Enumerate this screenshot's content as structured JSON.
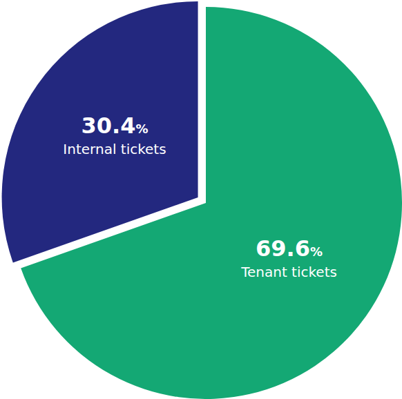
{
  "chart_data": {
    "type": "pie",
    "categories": [
      "Tenant tickets",
      "Internal tickets"
    ],
    "values": [
      69.6,
      30.4
    ],
    "value_labels": [
      "69.6%",
      "30.4%"
    ],
    "colors": [
      "#14a874",
      "#23287f"
    ],
    "data_labels": true
  }
}
